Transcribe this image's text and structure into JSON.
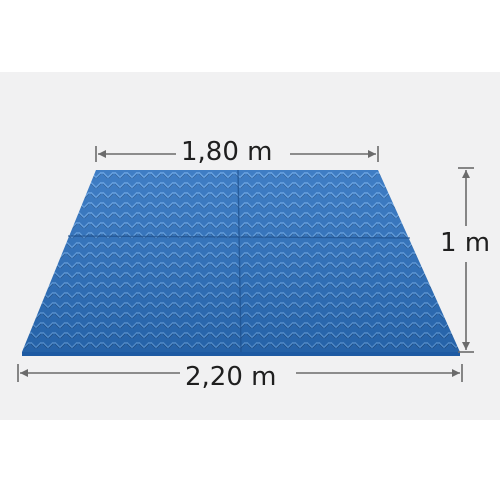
{
  "dimensions": {
    "top_width": "1,80 m",
    "bottom_width": "2,20 m",
    "depth": "1 m"
  },
  "colors": {
    "background_band": "#f1f1f2",
    "mat_base": "#2a6fbe",
    "mat_light": "#4a8fd8",
    "mat_dark": "#1d5aa3",
    "arrow": "#6b6b6b",
    "text": "#1f1f1f"
  }
}
